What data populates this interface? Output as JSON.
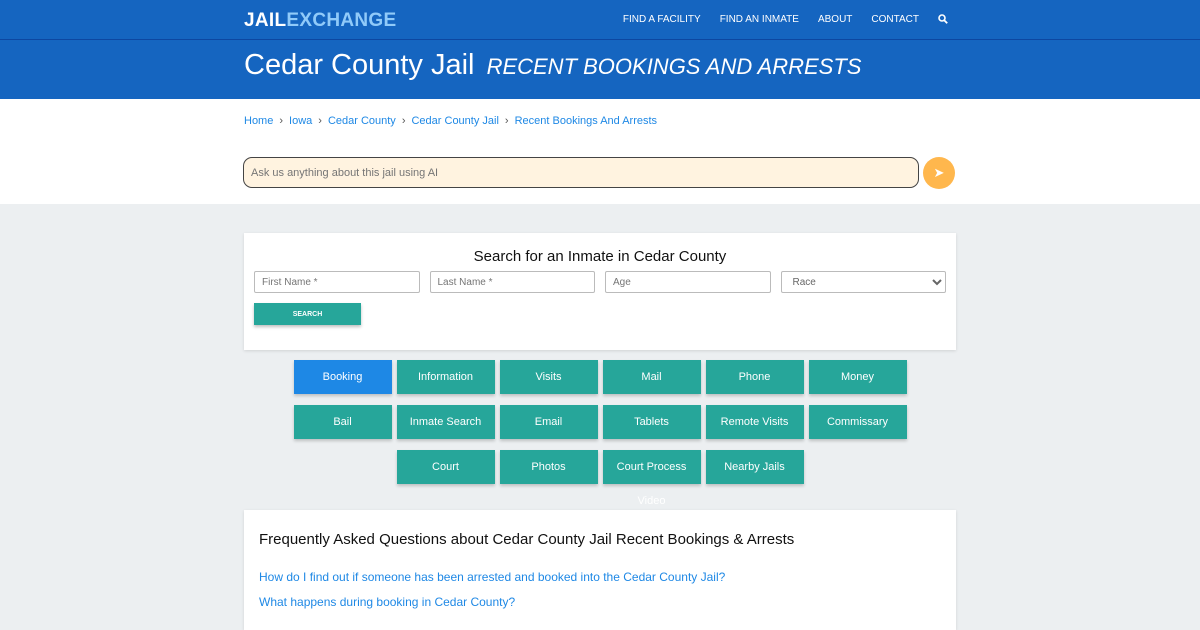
{
  "nav": {
    "logo_a": "JAIL",
    "logo_b": "EXCHANGE",
    "links": [
      "FIND A FACILITY",
      "FIND AN INMATE",
      "ABOUT",
      "CONTACT"
    ],
    "search_icon": "search-icon"
  },
  "banner": {
    "title": "Cedar County Jail",
    "subtitle": "RECENT BOOKINGS AND ARRESTS"
  },
  "breadcrumb": [
    "Home",
    "Iowa",
    "Cedar County",
    "Cedar County Jail",
    "Recent Bookings And Arrests"
  ],
  "ai": {
    "placeholder": "Ask us anything about this jail using AI",
    "send_icon": "paper-plane-icon"
  },
  "search": {
    "title": "Search for an Inmate in Cedar County",
    "first": "First Name *",
    "last": "Last Name *",
    "age": "Age",
    "race": "Race",
    "button": "SEARCH"
  },
  "buttons": [
    "Booking",
    "Information",
    "Visits",
    "Mail",
    "Phone",
    "Money",
    "Bail",
    "Inmate Search",
    "Email",
    "Tablets",
    "Remote Visits",
    "Commissary",
    "Court",
    "Photos",
    "Court Process Video",
    "Nearby Jails"
  ],
  "faq": {
    "title": "Frequently Asked Questions about Cedar County Jail Recent Bookings & Arrests",
    "questions": [
      "How do I find out if someone has been arrested and booked into the Cedar County Jail?",
      "What happens during booking in Cedar County?"
    ]
  },
  "colors": {
    "brand": "#1565c0",
    "teal": "#26a69a",
    "active": "#1e88e5",
    "send": "#ffb74d"
  }
}
